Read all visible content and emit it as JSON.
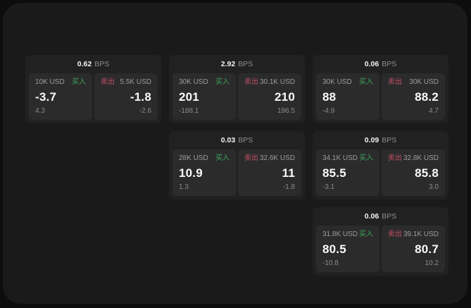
{
  "labels": {
    "bps_unit": "BPS",
    "buy": "买入",
    "sell": "卖出"
  },
  "colors": {
    "buy_green": "#3da45a",
    "sell_red": "#c25064",
    "background": "#0d0d0e",
    "panel": "#1a1a1b",
    "card": "#212122",
    "pane": "#2b2b2c"
  },
  "cards": [
    {
      "bps": "0.62",
      "col": 0,
      "row": 0,
      "buy": {
        "amount": "10K USD",
        "price": "-3.7",
        "delta": "4.3"
      },
      "sell": {
        "amount": "5.5K USD",
        "price": "-1.8",
        "delta": "-2.6"
      }
    },
    {
      "bps": "2.92",
      "col": 1,
      "row": 0,
      "buy": {
        "amount": "30K USD",
        "price": "201",
        "delta": "-188.1"
      },
      "sell": {
        "amount": "30.1K USD",
        "price": "210",
        "delta": "196.5"
      }
    },
    {
      "bps": "0.06",
      "col": 2,
      "row": 0,
      "buy": {
        "amount": "30K USD",
        "price": "88",
        "delta": "-4.9"
      },
      "sell": {
        "amount": "30K USD",
        "price": "88.2",
        "delta": "4.7"
      }
    },
    {
      "bps": "0.03",
      "col": 1,
      "row": 1,
      "buy": {
        "amount": "28K USD",
        "price": "10.9",
        "delta": "1.3"
      },
      "sell": {
        "amount": "32.6K USD",
        "price": "11",
        "delta": "-1.8"
      }
    },
    {
      "bps": "0.09",
      "col": 2,
      "row": 1,
      "buy": {
        "amount": "34.1K USD",
        "price": "85.5",
        "delta": "-3.1"
      },
      "sell": {
        "amount": "32.8K USD",
        "price": "85.8",
        "delta": "3.0"
      }
    },
    {
      "bps": "0.06",
      "col": 2,
      "row": 2,
      "buy": {
        "amount": "31.8K USD",
        "price": "80.5",
        "delta": "-10.8"
      },
      "sell": {
        "amount": "39.1K USD",
        "price": "80.7",
        "delta": "10.2"
      }
    }
  ]
}
